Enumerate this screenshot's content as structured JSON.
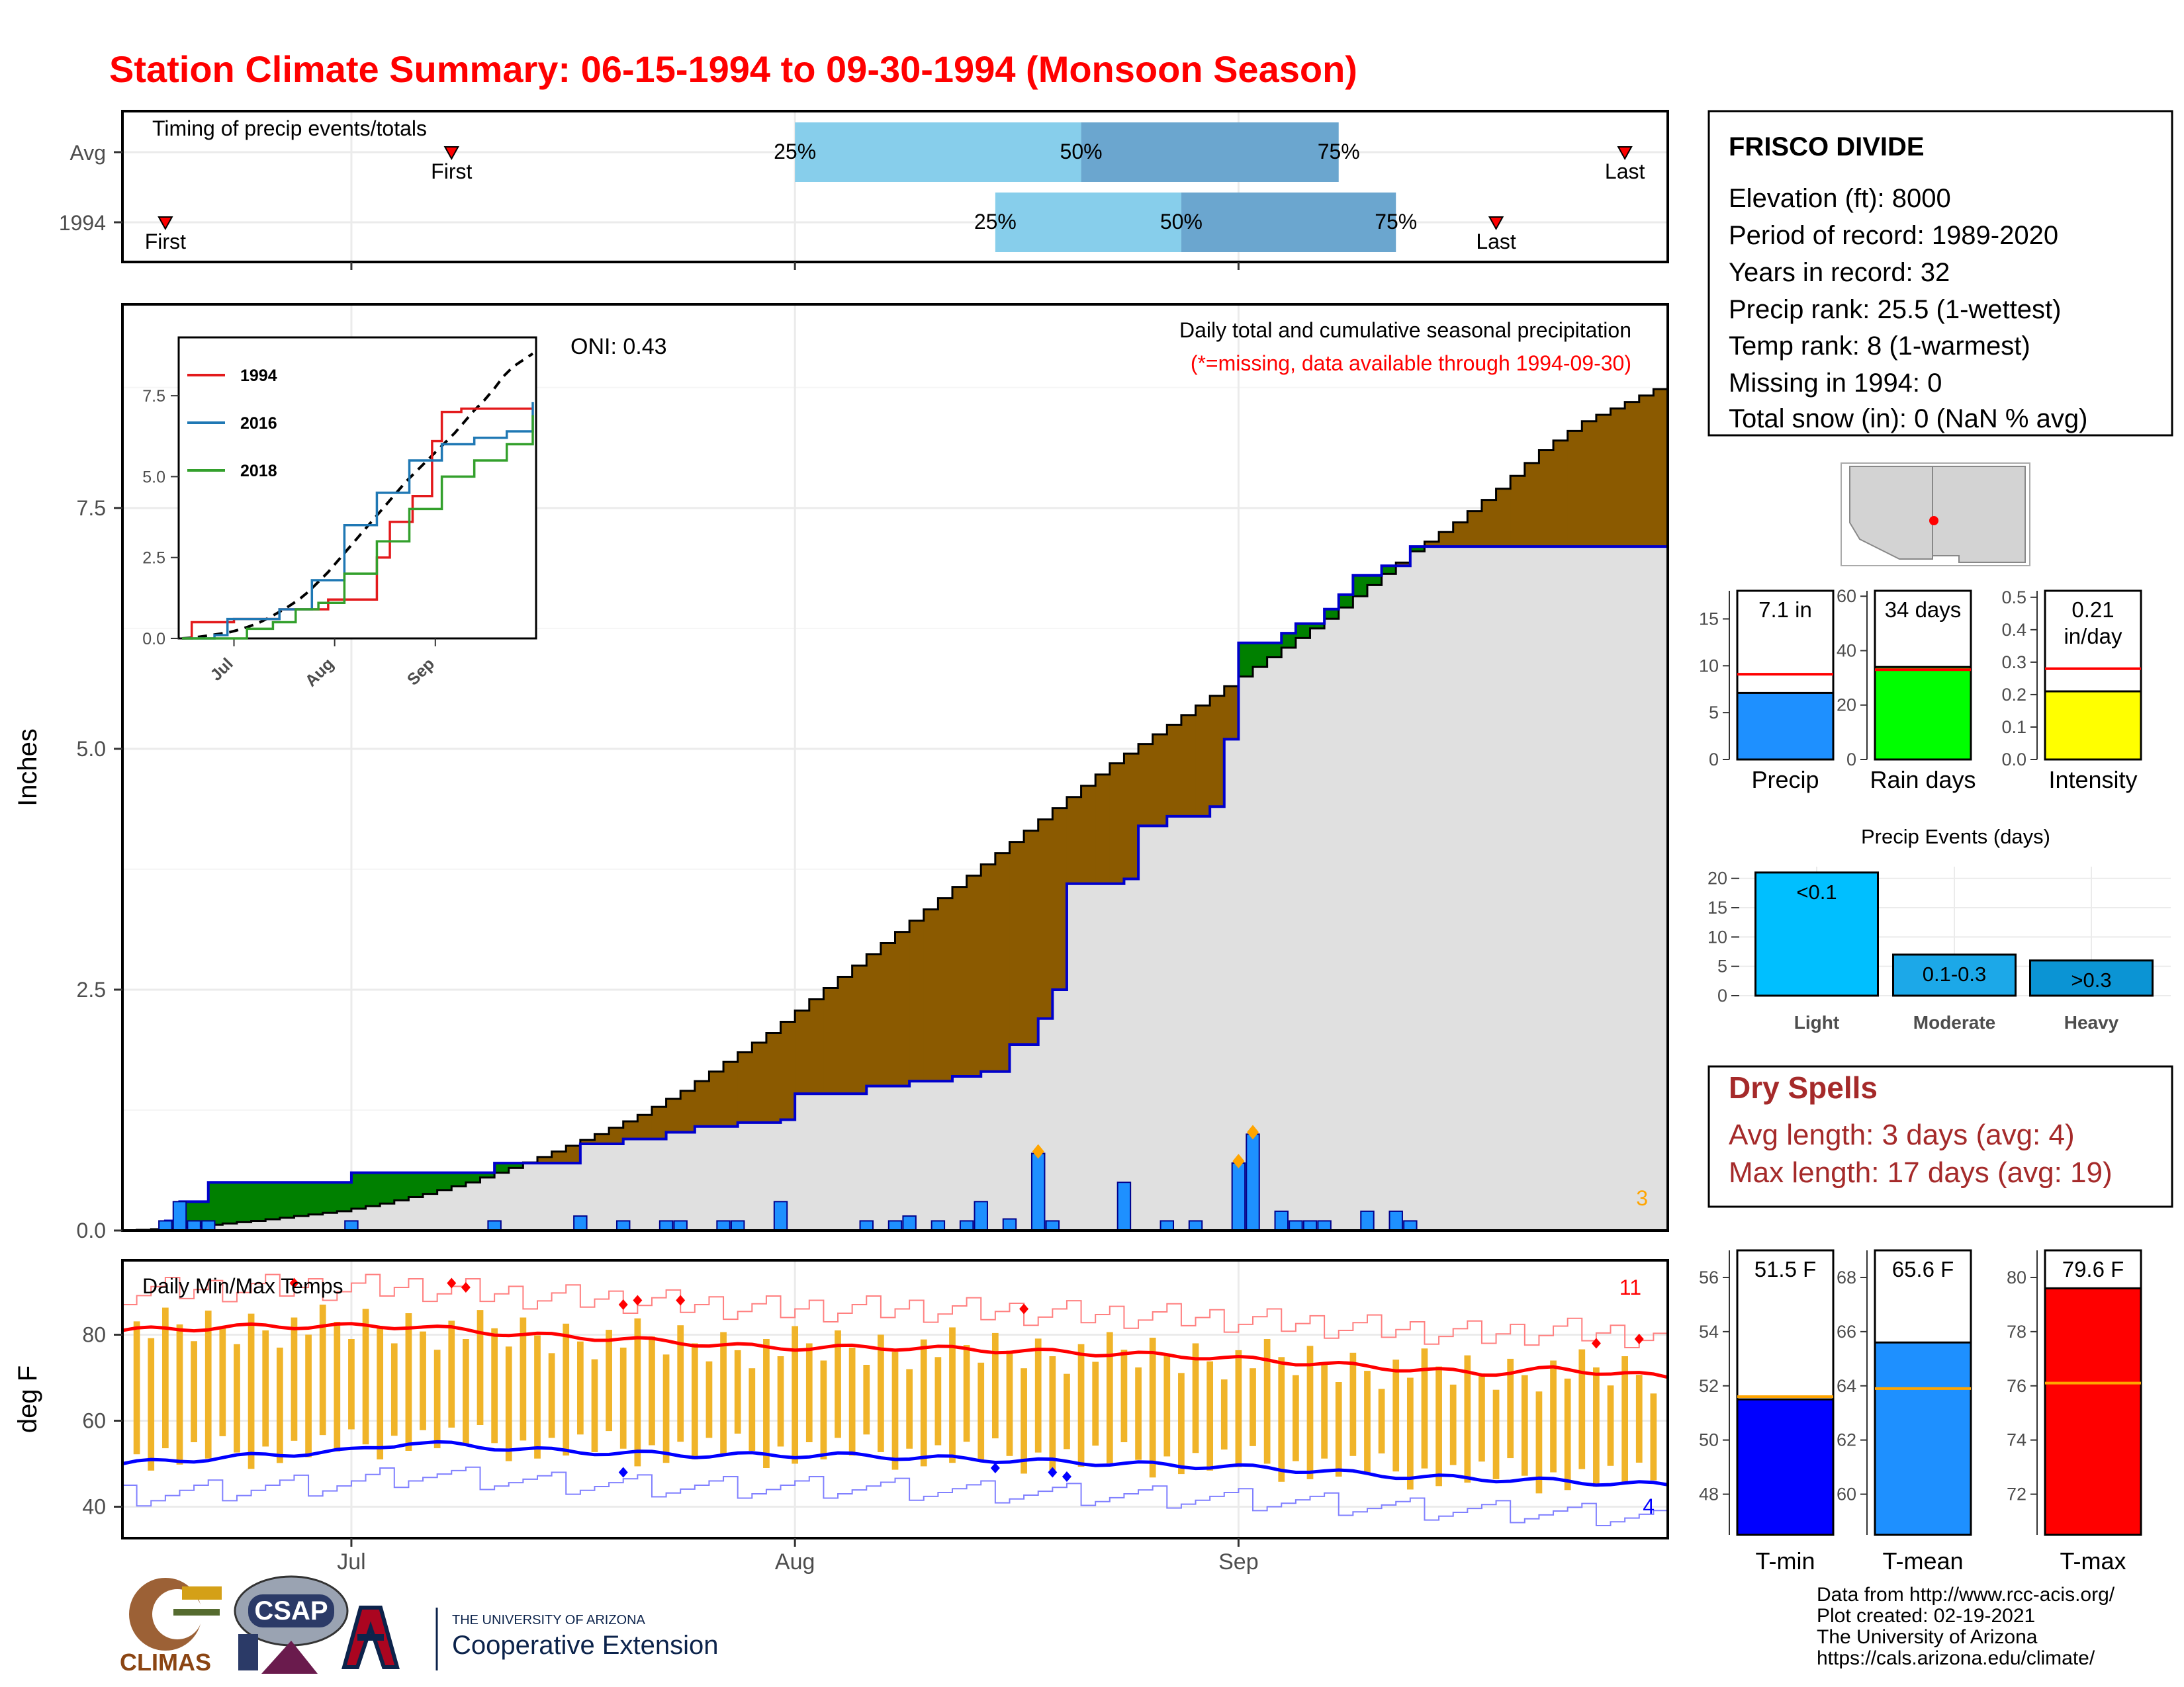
{
  "title": "Station Climate Summary: 06-15-1994 to 09-30-1994 (Monsoon Season)",
  "timing_panel": {
    "label": "Timing of precip events/totals",
    "rows": [
      "Avg",
      "1994"
    ],
    "avg": {
      "first_day": 23,
      "q25_day": 47,
      "q50_day": 67,
      "q75_day": 85,
      "last_day": 105
    },
    "y1994": {
      "first_day": 3,
      "q25_day": 61,
      "q50_day": 74,
      "q75_day": 89,
      "last_day": 96
    },
    "first_label": "First",
    "last_label": "Last",
    "q25_label": "25%",
    "q50_label": "50%",
    "q75_label": "75%"
  },
  "precip_panel": {
    "caption": "Daily total and cumulative seasonal precipitation",
    "missing_note": "(*=missing, data available through 1994-09-30)",
    "oni_label": "ONI: 0.43",
    "ylabel": "Inches",
    "yticks": [
      "0.0",
      "2.5",
      "5.0",
      "7.5"
    ],
    "corner_count": "3"
  },
  "temp_panel": {
    "label": "Daily Min/Max Temps",
    "ylabel": "deg F",
    "yticks": [
      "40",
      "60",
      "80"
    ],
    "count_high": "11",
    "count_low": "4"
  },
  "x_axis": {
    "months": [
      "Jul",
      "Aug",
      "Sep"
    ],
    "month_days": [
      16,
      47,
      78
    ]
  },
  "inset": {
    "yticks": [
      "0.0",
      "2.5",
      "5.0",
      "7.5"
    ],
    "months": [
      "Jul",
      "Aug",
      "Sep"
    ],
    "legend": [
      {
        "name": "1994",
        "color": "#e31a1c"
      },
      {
        "name": "2016",
        "color": "#1f78b4"
      },
      {
        "name": "2018",
        "color": "#33a02c"
      }
    ]
  },
  "station": {
    "name": "FRISCO DIVIDE",
    "lines": [
      "Elevation (ft): 8000",
      "Period of record: 1989-2020",
      "Years in record: 32",
      "Precip rank: 25.5 (1-wettest)",
      "Temp rank: 8 (1-warmest)",
      "Missing in 1994: 0",
      "Total snow (in): 0 (NaN % avg)"
    ]
  },
  "bar_stats": [
    {
      "label": "Precip",
      "text1": "7.1 in",
      "text2": "",
      "value": 7.1,
      "avg": 9.1,
      "ymax": 18,
      "ticks": [
        0,
        5,
        10,
        15
      ],
      "color": "#1e90ff"
    },
    {
      "label": "Rain days",
      "text1": "34 days",
      "text2": "",
      "value": 34,
      "avg": 33,
      "ymax": 62,
      "ticks": [
        0,
        20,
        40,
        60
      ],
      "color": "#00ff00"
    },
    {
      "label": "Intensity",
      "text1": "0.21",
      "text2": "in/day",
      "value": 0.21,
      "avg": 0.28,
      "ymax": 0.52,
      "ticks": [
        0.0,
        0.1,
        0.2,
        0.3,
        0.4,
        0.5
      ],
      "color": "#ffff00"
    }
  ],
  "precip_events": {
    "title": "Precip Events (days)",
    "categories": [
      "Light",
      "Moderate",
      "Heavy"
    ],
    "bar_labels": [
      "<0.1",
      "0.1-0.3",
      ">0.3"
    ],
    "values": [
      21,
      7,
      6
    ],
    "colors": [
      "#00bfff",
      "#1ca8e8",
      "#0b94d4"
    ],
    "ticks": [
      0,
      5,
      10,
      15,
      20
    ]
  },
  "dry_spells": {
    "title": "Dry Spells",
    "avg_line": "Avg length: 3 days (avg: 4)",
    "max_line": "Max length: 17 days (avg: 19)"
  },
  "temp_stats": [
    {
      "label": "T-min",
      "text": "51.5 F",
      "value": 51.5,
      "avg": 51.6,
      "ymin": 46.5,
      "ymax": 57,
      "ticks": [
        48,
        50,
        52,
        54,
        56
      ],
      "color": "#0000ff"
    },
    {
      "label": "T-mean",
      "text": "65.6 F",
      "value": 65.6,
      "avg": 63.9,
      "ymin": 58.5,
      "ymax": 69,
      "ticks": [
        60,
        62,
        64,
        66,
        68
      ],
      "color": "#1e90ff"
    },
    {
      "label": "T-max",
      "text": "79.6 F",
      "value": 79.6,
      "avg": 76.1,
      "ymin": 70.5,
      "ymax": 81,
      "ticks": [
        72,
        74,
        76,
        78,
        80
      ],
      "color": "#ff0000"
    }
  ],
  "footer": {
    "lines": [
      "Data from http://www.rcc-acis.org/",
      "Plot created: 02-19-2021",
      "The University of Arizona",
      "https://cals.arizona.edu/climate/"
    ]
  },
  "logos": {
    "climas": "CLIMAS",
    "csap": "CSAP",
    "ua_small": "THE UNIVERSITY OF ARIZONA",
    "ua_big": "Cooperative Extension"
  },
  "colors": {
    "title": "#ff0000",
    "cum_fill": "#8b5a00",
    "avg_fill": "#e0e0e0",
    "daily_bar": "#1e90ff",
    "temp_bar": "#f0b429",
    "dry": "#a52a2a"
  },
  "chart_data": [
    {
      "type": "area",
      "name": "cumulative precip",
      "x_start": "1994-06-15",
      "ylim": [
        0,
        9.6
      ],
      "cumulative_avg": [
        [
          0,
          0
        ],
        [
          3,
          0.02
        ],
        [
          6,
          0.06
        ],
        [
          9,
          0.1
        ],
        [
          12,
          0.15
        ],
        [
          15,
          0.2
        ],
        [
          18,
          0.28
        ],
        [
          21,
          0.38
        ],
        [
          24,
          0.5
        ],
        [
          27,
          0.65
        ],
        [
          30,
          0.82
        ],
        [
          33,
          1.0
        ],
        [
          36,
          1.2
        ],
        [
          39,
          1.45
        ],
        [
          42,
          1.75
        ],
        [
          45,
          2.05
        ],
        [
          48,
          2.4
        ],
        [
          51,
          2.75
        ],
        [
          54,
          3.1
        ],
        [
          57,
          3.45
        ],
        [
          60,
          3.8
        ],
        [
          63,
          4.15
        ],
        [
          66,
          4.5
        ],
        [
          69,
          4.85
        ],
        [
          72,
          5.15
        ],
        [
          75,
          5.45
        ],
        [
          78,
          5.75
        ],
        [
          81,
          6.05
        ],
        [
          84,
          6.35
        ],
        [
          87,
          6.7
        ],
        [
          90,
          7.05
        ],
        [
          93,
          7.35
        ],
        [
          96,
          7.7
        ],
        [
          99,
          8.1
        ],
        [
          102,
          8.4
        ],
        [
          105,
          8.6
        ],
        [
          108,
          8.8
        ]
      ],
      "cumulative_1994": [
        [
          0,
          0
        ],
        [
          3,
          0.1
        ],
        [
          4,
          0.3
        ],
        [
          6,
          0.5
        ],
        [
          16,
          0.6
        ],
        [
          26,
          0.7
        ],
        [
          32,
          0.9
        ],
        [
          35,
          0.95
        ],
        [
          38,
          1.02
        ],
        [
          40,
          1.08
        ],
        [
          43,
          1.12
        ],
        [
          46,
          1.15
        ],
        [
          47,
          1.42
        ],
        [
          52,
          1.5
        ],
        [
          55,
          1.55
        ],
        [
          58,
          1.6
        ],
        [
          60,
          1.65
        ],
        [
          62,
          1.93
        ],
        [
          64,
          2.2
        ],
        [
          65,
          2.5
        ],
        [
          66,
          3.6
        ],
        [
          70,
          3.65
        ],
        [
          71,
          4.2
        ],
        [
          73,
          4.3
        ],
        [
          76,
          4.4
        ],
        [
          77,
          5.1
        ],
        [
          78,
          6.1
        ],
        [
          81,
          6.2
        ],
        [
          82,
          6.3
        ],
        [
          84,
          6.45
        ],
        [
          85,
          6.6
        ],
        [
          86,
          6.8
        ],
        [
          88,
          6.9
        ],
        [
          90,
          7.1
        ],
        [
          108,
          7.1
        ]
      ],
      "daily_1994": [
        [
          3,
          0.1
        ],
        [
          4,
          0.3
        ],
        [
          5,
          0.1
        ],
        [
          6,
          0.1
        ],
        [
          16,
          0.1
        ],
        [
          26,
          0.1
        ],
        [
          32,
          0.15
        ],
        [
          35,
          0.1
        ],
        [
          38,
          0.1
        ],
        [
          39,
          0.1
        ],
        [
          42,
          0.1
        ],
        [
          43,
          0.1
        ],
        [
          46,
          0.3
        ],
        [
          52,
          0.1
        ],
        [
          54,
          0.1
        ],
        [
          55,
          0.15
        ],
        [
          57,
          0.1
        ],
        [
          59,
          0.1
        ],
        [
          60,
          0.3
        ],
        [
          62,
          0.12
        ],
        [
          64,
          0.8
        ],
        [
          65,
          0.1
        ],
        [
          70,
          0.5
        ],
        [
          73,
          0.1
        ],
        [
          75,
          0.1
        ],
        [
          78,
          0.7
        ],
        [
          79,
          1.0
        ],
        [
          81,
          0.2
        ],
        [
          82,
          0.1
        ],
        [
          83,
          0.1
        ],
        [
          84,
          0.1
        ],
        [
          87,
          0.2
        ],
        [
          89,
          0.2
        ],
        [
          90,
          0.1
        ]
      ]
    },
    {
      "type": "line",
      "name": "inset cumulative",
      "xlim": [
        0,
        108
      ],
      "ylim": [
        0,
        9.2
      ],
      "series": [
        {
          "name": "1994",
          "points": [
            [
              0,
              0
            ],
            [
              3,
              0.5
            ],
            [
              16,
              0.6
            ],
            [
              30,
              0.9
            ],
            [
              45,
              1.2
            ],
            [
              60,
              2.5
            ],
            [
              64,
              3.6
            ],
            [
              71,
              4.4
            ],
            [
              77,
              6.1
            ],
            [
              80,
              7.0
            ],
            [
              86,
              7.1
            ],
            [
              108,
              7.1
            ]
          ]
        },
        {
          "name": "2016",
          "points": [
            [
              0,
              0
            ],
            [
              10,
              0.1
            ],
            [
              14,
              0.6
            ],
            [
              20,
              0.6
            ],
            [
              30,
              0.9
            ],
            [
              40,
              1.8
            ],
            [
              50,
              3.5
            ],
            [
              60,
              4.5
            ],
            [
              70,
              5.5
            ],
            [
              80,
              6.0
            ],
            [
              90,
              6.2
            ],
            [
              100,
              6.4
            ],
            [
              108,
              7.3
            ]
          ]
        },
        {
          "name": "2018",
          "points": [
            [
              0,
              0
            ],
            [
              20,
              0.3
            ],
            [
              28,
              0.5
            ],
            [
              35,
              0.9
            ],
            [
              42,
              1.1
            ],
            [
              50,
              2.0
            ],
            [
              60,
              3.0
            ],
            [
              70,
              4.0
            ],
            [
              80,
              5.0
            ],
            [
              90,
              5.5
            ],
            [
              100,
              6.0
            ],
            [
              108,
              6.9
            ]
          ]
        }
      ]
    },
    {
      "type": "bar",
      "name": "daily temps",
      "ylim": [
        33,
        97
      ],
      "avg_max": [
        [
          0,
          81
        ],
        [
          10,
          82
        ],
        [
          20,
          82
        ],
        [
          28,
          80
        ],
        [
          35,
          79
        ],
        [
          45,
          77
        ],
        [
          55,
          77
        ],
        [
          65,
          76
        ],
        [
          75,
          75
        ],
        [
          85,
          73
        ],
        [
          95,
          71
        ],
        [
          100,
          72
        ],
        [
          105,
          71
        ],
        [
          108,
          70
        ]
      ],
      "avg_min": [
        [
          0,
          50
        ],
        [
          10,
          52
        ],
        [
          16,
          53
        ],
        [
          20,
          55
        ],
        [
          30,
          53
        ],
        [
          40,
          52
        ],
        [
          50,
          52
        ],
        [
          60,
          51
        ],
        [
          70,
          50
        ],
        [
          80,
          49
        ],
        [
          90,
          47
        ],
        [
          100,
          46
        ],
        [
          108,
          45
        ]
      ]
    }
  ]
}
